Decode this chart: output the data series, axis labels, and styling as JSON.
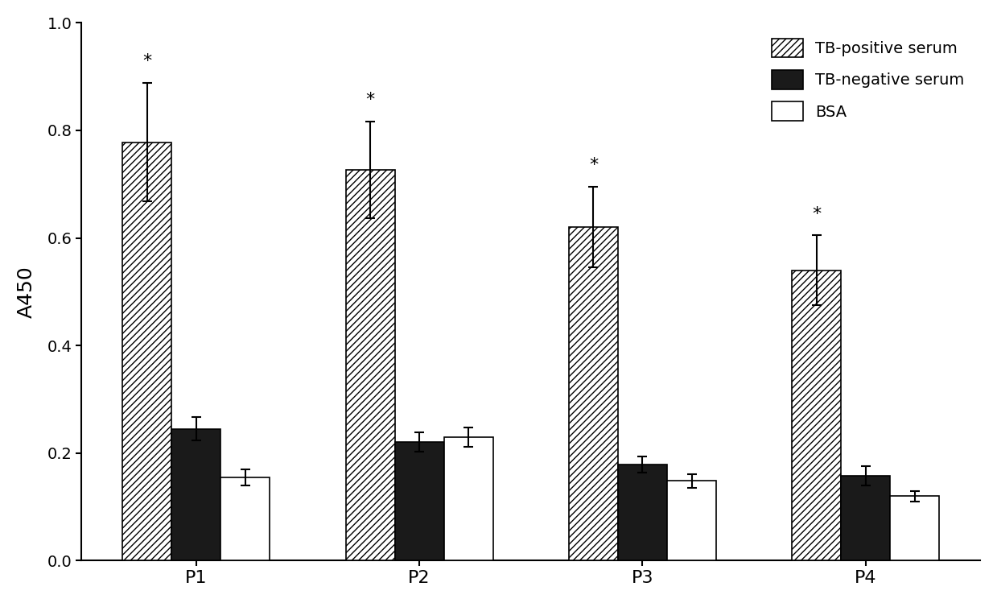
{
  "categories": [
    "P1",
    "P2",
    "P3",
    "P4"
  ],
  "tb_positive": [
    0.778,
    0.727,
    0.62,
    0.54
  ],
  "tb_negative": [
    0.245,
    0.22,
    0.178,
    0.158
  ],
  "bsa": [
    0.155,
    0.23,
    0.148,
    0.12
  ],
  "tb_positive_err": [
    0.11,
    0.09,
    0.075,
    0.065
  ],
  "tb_negative_err": [
    0.022,
    0.018,
    0.015,
    0.018
  ],
  "bsa_err": [
    0.015,
    0.018,
    0.012,
    0.01
  ],
  "ylabel": "A450",
  "ylim": [
    0.0,
    1.0
  ],
  "yticks": [
    0.0,
    0.2,
    0.4,
    0.6,
    0.8,
    1.0
  ],
  "legend_labels": [
    "TB-positive serum",
    "TB-negative serum",
    "BSA"
  ],
  "bar_width": 0.22,
  "hatch_pattern": "////",
  "significance_marker": "*",
  "background_color": "#ffffff",
  "bar_color_positive": "#ffffff",
  "bar_color_negative": "#1a1a1a",
  "bar_color_bsa": "#ffffff",
  "edge_color": "#000000"
}
